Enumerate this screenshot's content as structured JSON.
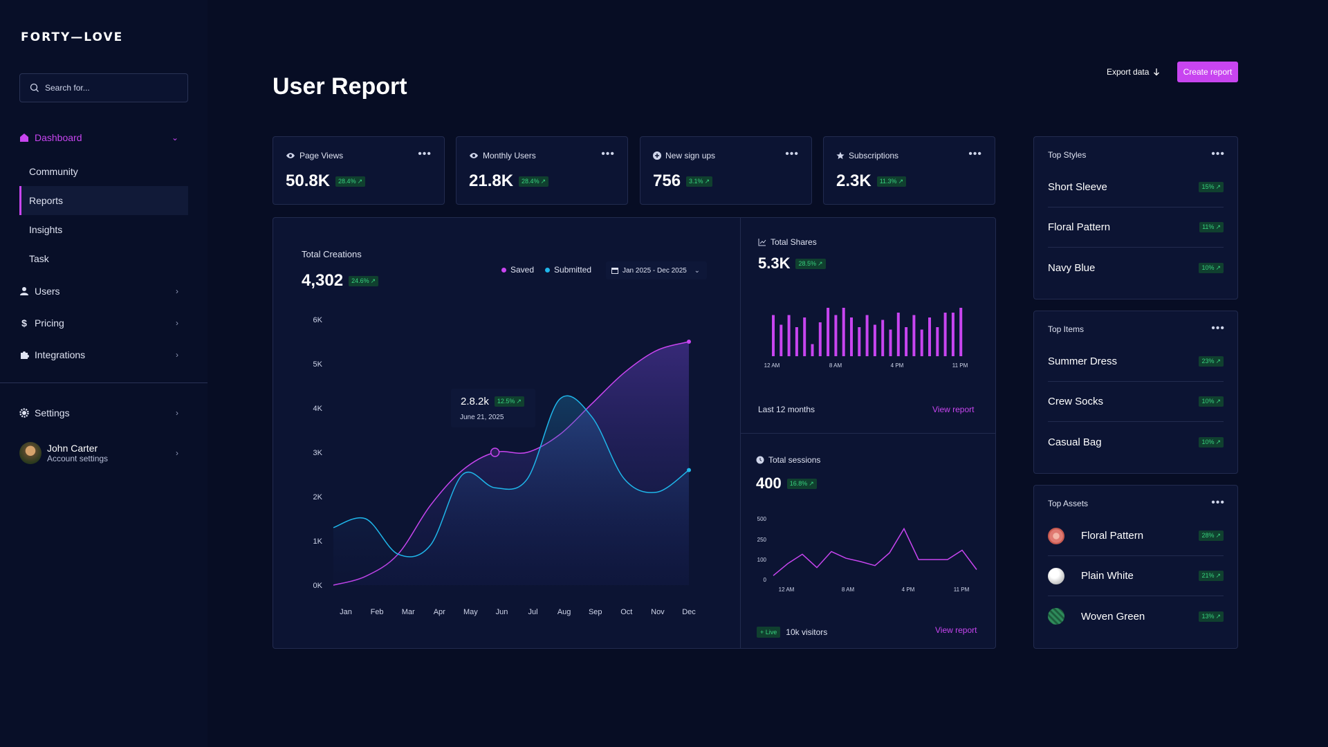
{
  "app": {
    "logo": "FORTY—LOVE"
  },
  "search": {
    "placeholder": "Search for..."
  },
  "sidebar": {
    "dashboard": "Dashboard",
    "sub_items": [
      "Community",
      "Reports",
      "Insights",
      "Task"
    ],
    "users": "Users",
    "pricing": "Pricing",
    "integrations": "Integrations",
    "settings": "Settings",
    "user_name": "John Carter",
    "user_sub": "Account settings"
  },
  "header": {
    "title": "User Report",
    "export_label": "Export data",
    "create_label": "Create report"
  },
  "stats": [
    {
      "label": "Page Views",
      "value": "50.8K",
      "change": "28.4%",
      "icon": "eye-icon"
    },
    {
      "label": "Monthly Users",
      "value": "21.8K",
      "change": "28.4%",
      "icon": "eye-icon"
    },
    {
      "label": "New sign ups",
      "value": "756",
      "change": "3.1%",
      "icon": "plus-circle-icon"
    },
    {
      "label": "Subscriptions",
      "value": "2.3K",
      "change": "11.3%",
      "icon": "star-icon"
    }
  ],
  "creations": {
    "label": "Total Creations",
    "value": "4,302",
    "change": "24.6%",
    "legend_saved": "Saved",
    "legend_submitted": "Submitted",
    "date_range": "Jan 2025 - Dec 2025",
    "tooltip_value": "2.8.2k",
    "tooltip_change": "12.5%",
    "tooltip_date": "June 21, 2025"
  },
  "shares": {
    "label": "Total Shares",
    "value": "5.3K",
    "change": "28.5%",
    "period": "Last 12 months",
    "view_report": "View report"
  },
  "sessions": {
    "label": "Total sessions",
    "value": "400",
    "change": "16.8%",
    "live": "+ Live",
    "visitors": "10k visitors",
    "view_report": "View report"
  },
  "top_styles": {
    "title": "Top Styles",
    "items": [
      {
        "name": "Short Sleeve",
        "change": "15%"
      },
      {
        "name": "Floral Pattern",
        "change": "11%"
      },
      {
        "name": "Navy Blue",
        "change": "10%"
      }
    ]
  },
  "top_items": {
    "title": "Top Items",
    "items": [
      {
        "name": "Summer Dress",
        "change": "23%"
      },
      {
        "name": "Crew Socks",
        "change": "10%"
      },
      {
        "name": "Casual Bag",
        "change": "10%"
      }
    ]
  },
  "top_assets": {
    "title": "Top Assets",
    "items": [
      {
        "name": "Floral Pattern",
        "change": "28%",
        "color": "#e07a72"
      },
      {
        "name": "Plain White",
        "change": "21%",
        "color": "#d9d9d9"
      },
      {
        "name": "Woven Green",
        "change": "13%",
        "color": "#2e8a5a"
      }
    ]
  },
  "colors": {
    "accent": "#c845f0",
    "cyan": "#1fb6ea",
    "green": "#38d27f"
  },
  "chart_data": [
    {
      "type": "area",
      "categories": [
        "Jan",
        "Feb",
        "Mar",
        "Apr",
        "May",
        "Jun",
        "Jul",
        "Aug",
        "Sep",
        "Oct",
        "Nov",
        "Dec"
      ],
      "y_ticks": [
        "0K",
        "1K",
        "2K",
        "3K",
        "4K",
        "5K",
        "6K"
      ],
      "ylim": [
        0,
        6000
      ],
      "series": [
        {
          "name": "Saved",
          "values": [
            0,
            200,
            700,
            1800,
            2600,
            3000,
            3000,
            3400,
            4100,
            4800,
            5300,
            5500
          ]
        },
        {
          "name": "Submitted",
          "values": [
            1300,
            1500,
            700,
            900,
            2500,
            2200,
            2400,
            4200,
            3800,
            2400,
            2100,
            2600
          ]
        }
      ]
    },
    {
      "type": "bar",
      "x_ticks": [
        "12 AM",
        "8 AM",
        "4 PM",
        "11 PM"
      ],
      "values": [
        85,
        65,
        85,
        60,
        80,
        25,
        70,
        100,
        85,
        100,
        80,
        60,
        85,
        65,
        75,
        55,
        90,
        60,
        85,
        55,
        80,
        60,
        90,
        90,
        100
      ]
    },
    {
      "type": "line",
      "x_ticks": [
        "12 AM",
        "8 AM",
        "4 PM",
        "11 PM"
      ],
      "y_ticks": [
        "0",
        "100",
        "250",
        "500"
      ],
      "ylim": [
        0,
        500
      ],
      "values": [
        20,
        80,
        140,
        60,
        160,
        110,
        90,
        70,
        150,
        380,
        100,
        100,
        100,
        170,
        50
      ]
    }
  ]
}
